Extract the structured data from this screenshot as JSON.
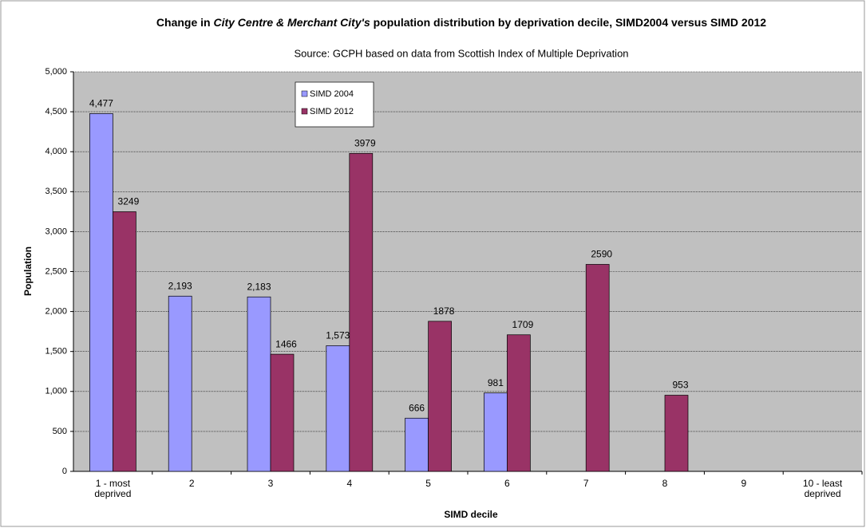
{
  "chart_data": {
    "type": "bar",
    "title": [
      "Change in ",
      "City Centre & Merchant City's",
      " population distribution by deprivation decile, SIMD2004 versus SIMD 2012"
    ],
    "subtitle": "Source: GCPH based on data from Scottish Index of Multiple Deprivation",
    "x_label": "SIMD decile",
    "y_label": "Population",
    "categories": [
      "1 - most deprived",
      "2",
      "3",
      "4",
      "5",
      "6",
      "7",
      "8",
      "9",
      "10 - least deprived"
    ],
    "series": [
      {
        "name": "SIMD 2004",
        "color": "#9999ff",
        "values": [
          4477,
          2193,
          2183,
          1573,
          666,
          981,
          null,
          null,
          null,
          null
        ],
        "value_labels": [
          "4,477",
          "2,193",
          "2,183",
          "1,573",
          "666",
          "981",
          null,
          null,
          null,
          null
        ]
      },
      {
        "name": "SIMD 2012",
        "color": "#993366",
        "values": [
          3249,
          null,
          1466,
          3979,
          1878,
          1709,
          2590,
          953,
          null,
          null
        ]
      }
    ],
    "ylim": [
      0,
      5000
    ],
    "yticks": [
      0,
      500,
      {
        "value": 1000,
        "label": "1,000"
      },
      {
        "value": 1500,
        "label": "1,500"
      },
      {
        "value": 2000,
        "label": "2,000"
      },
      {
        "value": 2500,
        "label": "2,500"
      },
      {
        "value": 3000,
        "label": "3,000"
      },
      {
        "value": 3500,
        "label": "3,500"
      },
      {
        "value": 4000,
        "label": "4,000"
      },
      {
        "value": 4500,
        "label": "4,500"
      },
      {
        "value": 5000,
        "label": "5,000"
      }
    ],
    "grid": true,
    "legend": "top-left"
  }
}
